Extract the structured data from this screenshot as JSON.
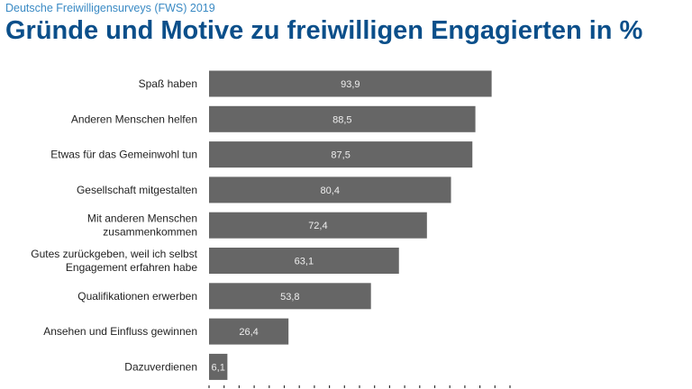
{
  "header": {
    "subtitle": "Deutsche Freiwilligensurveys (FWS) 2019",
    "title": "Gründe und Motive zu freiwilligen Engagierten in %"
  },
  "chart_data": {
    "type": "bar",
    "orientation": "horizontal",
    "categories": [
      [
        "Spaß haben"
      ],
      [
        "Anderen Menschen helfen"
      ],
      [
        "Etwas für das Gemeinwohl tun"
      ],
      [
        "Gesellschaft mitgestalten"
      ],
      [
        "Mit anderen Menschen",
        "zusammenkommen"
      ],
      [
        "Gutes zurückgeben, weil ich selbst",
        "Engagement erfahren habe"
      ],
      [
        "Qualifikationen erwerben"
      ],
      [
        "Ansehen und Einfluss gewinnen"
      ],
      [
        "Dazuverdienen"
      ]
    ],
    "values": [
      93.9,
      88.5,
      87.5,
      80.4,
      72.4,
      63.1,
      53.8,
      26.4,
      6.1
    ],
    "value_labels": [
      "93,9",
      "88,5",
      "87,5",
      "80,4",
      "72,4",
      "63,1",
      "53,8",
      "26,4",
      "6,1"
    ],
    "xlim": [
      0,
      100
    ],
    "x_tick_step": 5,
    "grid": false,
    "bar_color": "#666666"
  }
}
